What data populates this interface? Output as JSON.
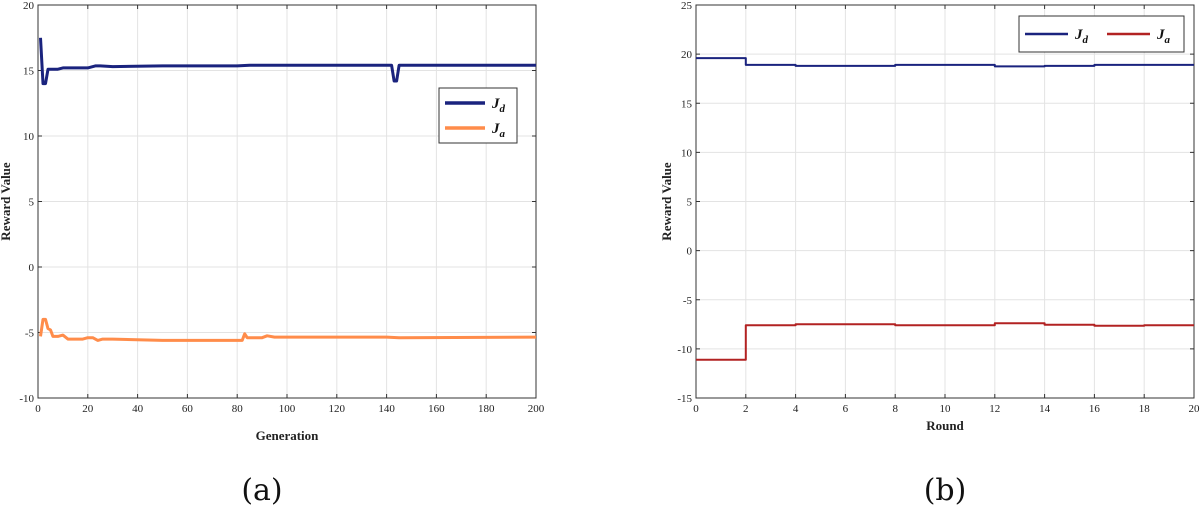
{
  "chart_data": [
    {
      "type": "line",
      "caption": "(a)",
      "xlabel": "Generation",
      "ylabel": "Reward Value",
      "xlim": [
        0,
        200
      ],
      "ylim": [
        -10,
        20
      ],
      "xticks": [
        0,
        20,
        40,
        60,
        80,
        100,
        120,
        140,
        160,
        180,
        200
      ],
      "yticks": [
        -10,
        -5,
        0,
        5,
        10,
        15,
        20
      ],
      "grid": true,
      "legend_position": "upper-right",
      "series": [
        {
          "name": "J_d",
          "legend_main": "J",
          "legend_sub": "d",
          "color": "#1a237e",
          "x": [
            1,
            2,
            3,
            4,
            5,
            8,
            10,
            20,
            23,
            25,
            30,
            50,
            80,
            85,
            100,
            140,
            142,
            143,
            144,
            145,
            200
          ],
          "y": [
            17.5,
            14.0,
            14.0,
            15.1,
            15.1,
            15.1,
            15.2,
            15.2,
            15.35,
            15.35,
            15.3,
            15.35,
            15.35,
            15.4,
            15.4,
            15.4,
            15.4,
            14.2,
            14.2,
            15.4,
            15.4
          ]
        },
        {
          "name": "J_a",
          "legend_main": "J",
          "legend_sub": "a",
          "color": "#ff8c4a",
          "x": [
            1,
            2,
            3,
            4,
            5,
            6,
            8,
            10,
            12,
            18,
            20,
            22,
            24,
            26,
            30,
            50,
            82,
            83,
            84,
            85,
            90,
            92,
            95,
            100,
            140,
            145,
            200
          ],
          "y": [
            -5.3,
            -4.0,
            -4.0,
            -4.7,
            -4.8,
            -5.3,
            -5.3,
            -5.2,
            -5.5,
            -5.5,
            -5.4,
            -5.4,
            -5.6,
            -5.5,
            -5.5,
            -5.6,
            -5.6,
            -5.1,
            -5.4,
            -5.4,
            -5.4,
            -5.25,
            -5.35,
            -5.35,
            -5.35,
            -5.4,
            -5.35
          ]
        }
      ]
    },
    {
      "type": "line",
      "caption": "(b)",
      "xlabel": "Round",
      "ylabel": "Reward Value",
      "xlim": [
        0,
        20
      ],
      "ylim": [
        -15,
        25
      ],
      "xticks": [
        0,
        2,
        4,
        6,
        8,
        10,
        12,
        14,
        16,
        18,
        20
      ],
      "yticks": [
        -15,
        -10,
        -5,
        0,
        5,
        10,
        15,
        20,
        25
      ],
      "grid": true,
      "legend_position": "top-right",
      "series": [
        {
          "name": "J_d",
          "legend_main": "J",
          "legend_sub": "d",
          "color": "#1a237e",
          "x": [
            0,
            2,
            2,
            4,
            4,
            8,
            8,
            12,
            12,
            14,
            14,
            16,
            16,
            20
          ],
          "y": [
            19.6,
            19.6,
            18.9,
            18.9,
            18.8,
            18.8,
            18.9,
            18.9,
            18.75,
            18.75,
            18.8,
            18.8,
            18.9,
            18.9
          ]
        },
        {
          "name": "J_a",
          "legend_main": "J",
          "legend_sub": "a",
          "color": "#b22222",
          "x": [
            0,
            2,
            2,
            4,
            4,
            8,
            8,
            12,
            12,
            14,
            14,
            16,
            16,
            18,
            18,
            20
          ],
          "y": [
            -11.1,
            -11.1,
            -7.6,
            -7.6,
            -7.5,
            -7.5,
            -7.6,
            -7.6,
            -7.4,
            -7.4,
            -7.55,
            -7.55,
            -7.65,
            -7.65,
            -7.6,
            -7.6
          ]
        }
      ]
    }
  ]
}
